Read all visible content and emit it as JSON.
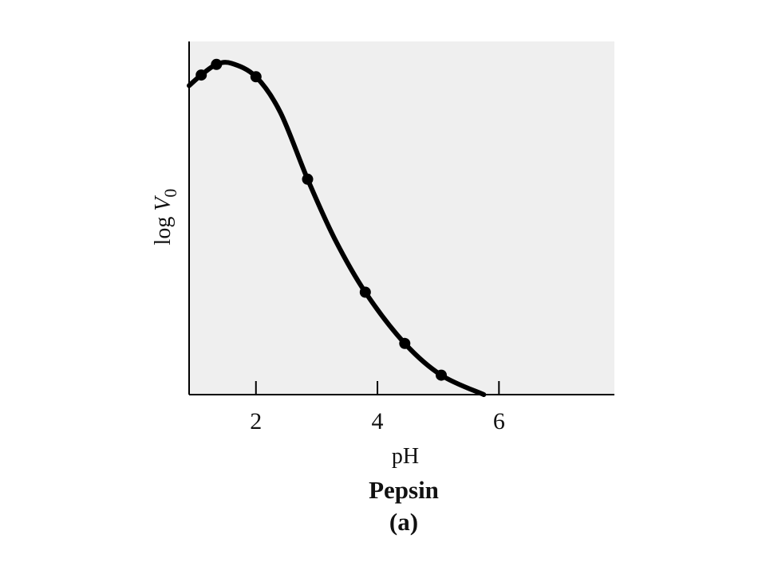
{
  "chart_data": {
    "type": "line",
    "title": "Pepsin",
    "panel_label": "(a)",
    "xlabel": "pH",
    "ylabel": {
      "prefix": "log ",
      "var": "V",
      "sub": "0"
    },
    "xlim": [
      0.9,
      7.9
    ],
    "ylim": [
      0,
      1
    ],
    "xticks": [
      2,
      4,
      6
    ],
    "yticks": [],
    "grid": false,
    "colors": {
      "plot_bg": "#efefef",
      "line": "#000000",
      "marker": "#000000",
      "axis": "#000000"
    },
    "series": [
      {
        "points": [
          {
            "x": 1.1,
            "y": 0.905
          },
          {
            "x": 1.35,
            "y": 0.935
          },
          {
            "x": 2.0,
            "y": 0.9
          },
          {
            "x": 2.85,
            "y": 0.61
          },
          {
            "x": 3.8,
            "y": 0.29
          },
          {
            "x": 4.45,
            "y": 0.145
          },
          {
            "x": 5.05,
            "y": 0.055
          }
        ],
        "curve": [
          {
            "x": 0.9,
            "y": 0.875
          },
          {
            "x": 1.1,
            "y": 0.905
          },
          {
            "x": 1.35,
            "y": 0.935
          },
          {
            "x": 1.6,
            "y": 0.938
          },
          {
            "x": 2.0,
            "y": 0.9
          },
          {
            "x": 2.4,
            "y": 0.8
          },
          {
            "x": 2.85,
            "y": 0.61
          },
          {
            "x": 3.3,
            "y": 0.44
          },
          {
            "x": 3.8,
            "y": 0.29
          },
          {
            "x": 4.45,
            "y": 0.145
          },
          {
            "x": 5.05,
            "y": 0.055
          },
          {
            "x": 5.75,
            "y": 0.0
          }
        ]
      }
    ]
  }
}
